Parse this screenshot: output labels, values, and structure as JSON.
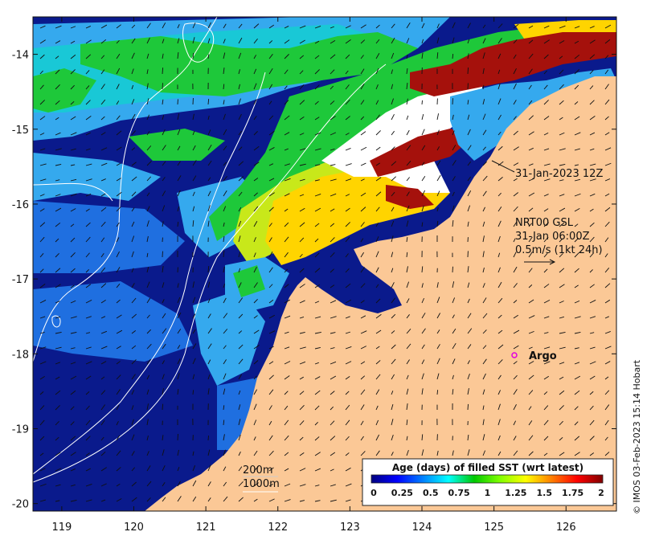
{
  "map": {
    "x_ticks": [
      119,
      120,
      121,
      122,
      123,
      124,
      125,
      126
    ],
    "y_ticks": [
      -14,
      -15,
      -16,
      -17,
      -18,
      -19,
      -20
    ],
    "lon_range": [
      118.6,
      126.7
    ],
    "lat_range": [
      -20.1,
      -13.5
    ],
    "colors": {
      "land": "#fbc896",
      "deep_blue": "#0a1a8c",
      "mid_blue": "#1f6fe0",
      "light_blue": "#35a9ee",
      "cyan": "#19c8d6",
      "green": "#1ec83a",
      "yellow_green": "#c8e81a",
      "yellow": "#ffd400",
      "dark_red": "#a5110c",
      "white": "#ffffff"
    }
  },
  "annotations": {
    "date_label": "31-Jan-2023 12Z",
    "current_model": "NRT00 GSL",
    "current_time": "31-Jan 06:00Z",
    "current_scale": "0.5m/s (1kt 24h)",
    "argo_label": "Argo",
    "contour_200": "200m",
    "contour_1000": "1000m"
  },
  "colorbar": {
    "title": "Age (days) of filled SST (wrt latest)",
    "labels": [
      "0",
      "0.25",
      "0.5",
      "0.75",
      "1",
      "1.25",
      "1.5",
      "1.75",
      "2"
    ],
    "range": [
      0,
      2
    ],
    "colors": [
      "#00007f",
      "#0000ff",
      "#0080ff",
      "#00ffff",
      "#00c800",
      "#80ff00",
      "#ffff00",
      "#ff8000",
      "#ff0000",
      "#800000"
    ]
  },
  "copyright": "© IMOS 03-Feb-2023 15:14 Hobart"
}
